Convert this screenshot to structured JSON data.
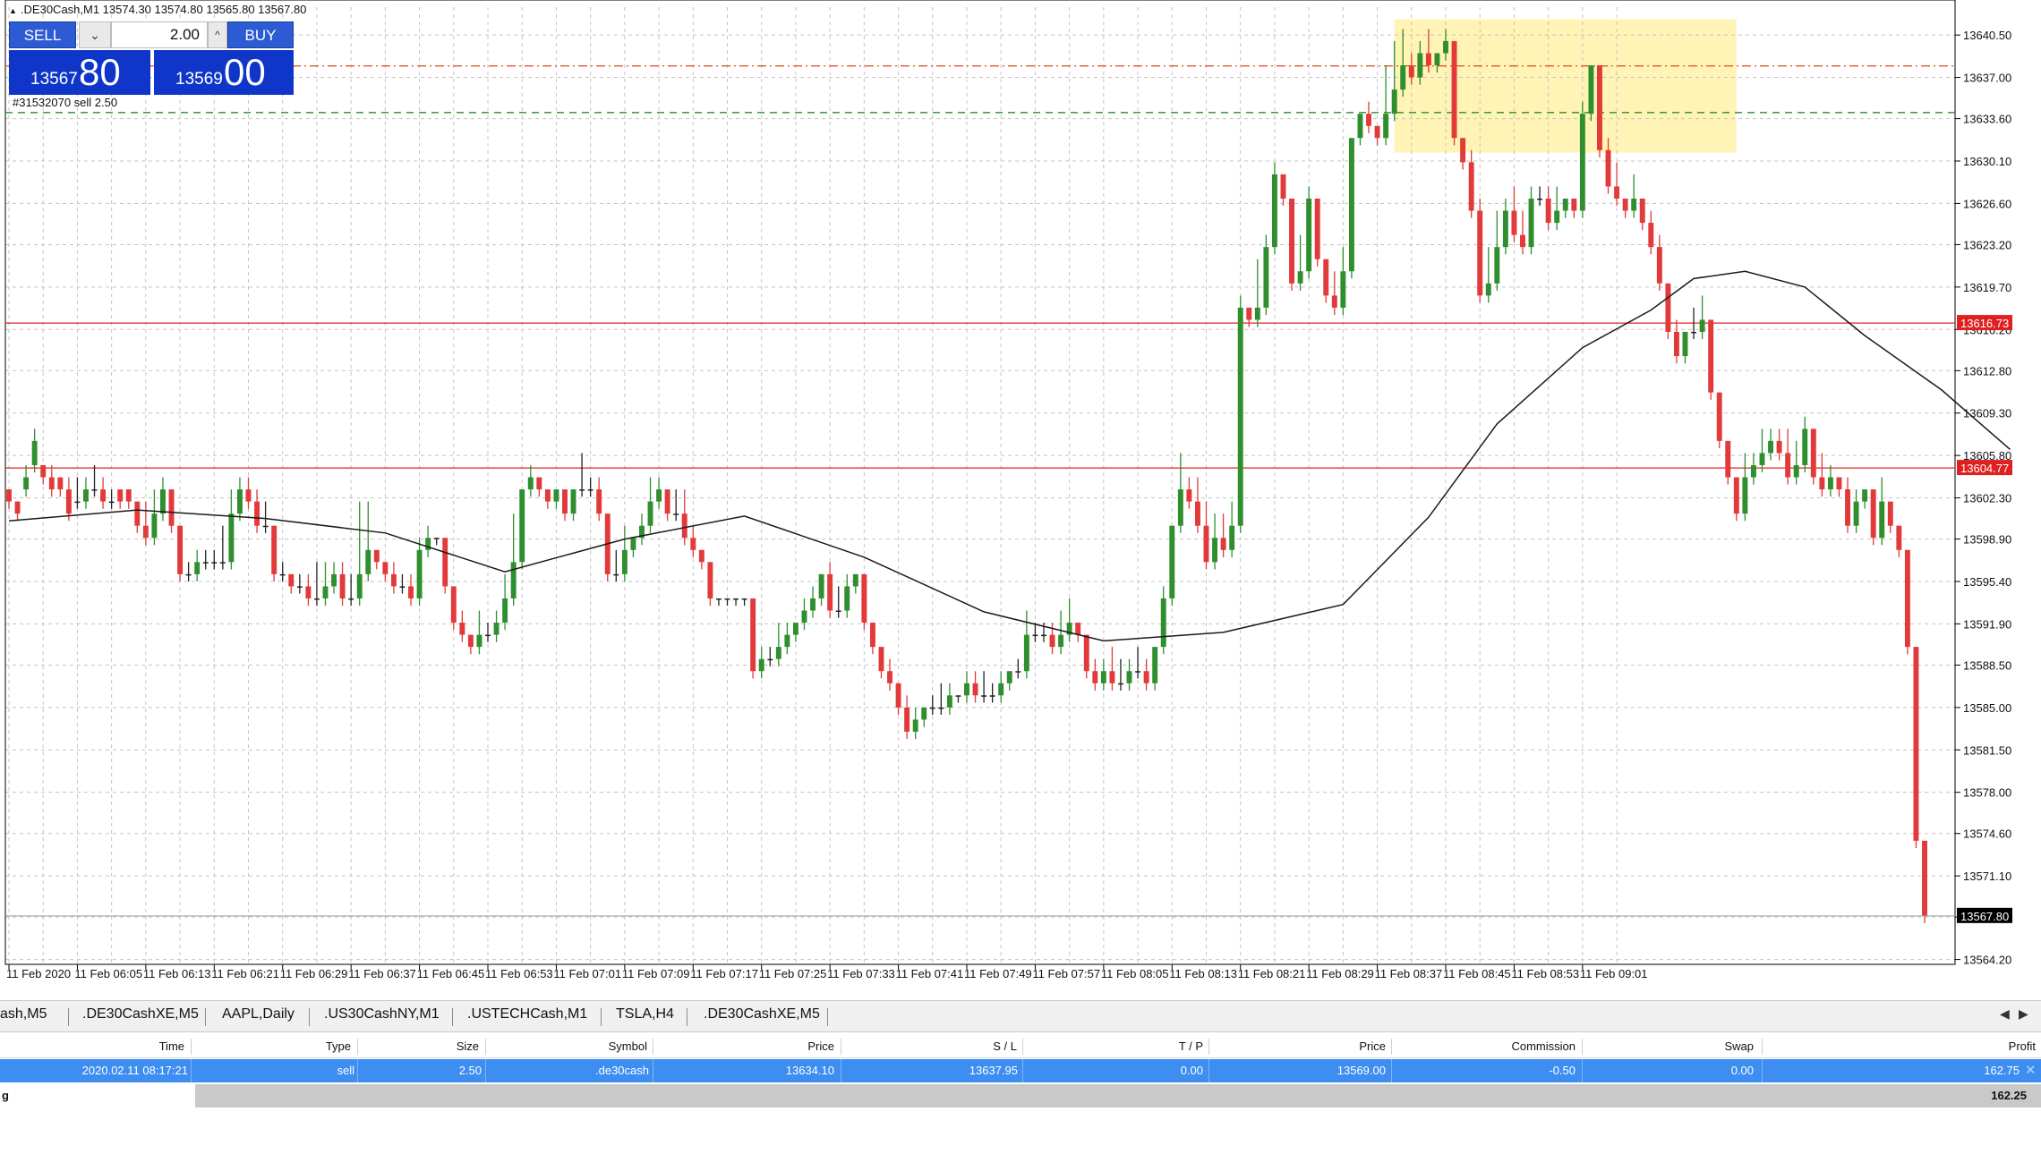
{
  "window": {
    "symbol_line": ".DE30Cash,M1  13574.30 13574.80 13565.80 13567.80"
  },
  "trade_panel": {
    "sell_label": "SELL",
    "buy_label": "BUY",
    "lot_value": "2.00",
    "sell_price_small": "13567",
    "sell_price_big": "80",
    "buy_price_small": "13569",
    "buy_price_big": "00",
    "order_label": "#31532070 sell 2.50"
  },
  "chart_data": {
    "type": "candlestick",
    "price_ticks": [
      "13640.50",
      "13637.00",
      "13633.60",
      "13630.10",
      "13626.60",
      "13623.20",
      "13619.70",
      "13616.20",
      "13612.80",
      "13609.30",
      "13605.80",
      "13602.30",
      "13598.90",
      "13595.40",
      "13591.90",
      "13588.50",
      "13585.00",
      "13581.50",
      "13578.00",
      "13574.60",
      "13571.10",
      "13567.70",
      "13564.20"
    ],
    "time_ticks": [
      "11 Feb 2020",
      "11 Feb 06:05",
      "11 Feb 06:13",
      "11 Feb 06:21",
      "11 Feb 06:29",
      "11 Feb 06:37",
      "11 Feb 06:45",
      "11 Feb 06:53",
      "11 Feb 07:01",
      "11 Feb 07:09",
      "11 Feb 07:17",
      "11 Feb 07:25",
      "11 Feb 07:33",
      "11 Feb 07:41",
      "11 Feb 07:49",
      "11 Feb 07:57",
      "11 Feb 08:05",
      "11 Feb 08:13",
      "11 Feb 08:21",
      "11 Feb 08:29",
      "11 Feb 08:37",
      "11 Feb 08:45",
      "11 Feb 08:53",
      "11 Feb 09:01"
    ],
    "y_range": [
      13563.8,
      13642.8
    ],
    "horizontal_levels": [
      {
        "price": 13616.73,
        "label": "13616.73",
        "color": "#e02020",
        "style": "solid"
      },
      {
        "price": 13604.77,
        "label": "13604.77",
        "color": "#e02020",
        "style": "solid"
      },
      {
        "price": 13637.95,
        "label": "",
        "color": "#e05a2a",
        "style": "dashdot"
      },
      {
        "price": 13634.1,
        "label": "",
        "color": "#2e8b2e",
        "style": "dashed"
      }
    ],
    "current_price_label": "13567.80",
    "highlight_zone": {
      "t_start": 162,
      "t_end": 202,
      "price_low": 13630.8,
      "price_high": 13641.8,
      "color": "#fff2a8"
    },
    "ma_points": [
      [
        0,
        13600.4
      ],
      [
        15,
        13601.3
      ],
      [
        30,
        13600.6
      ],
      [
        44,
        13599.4
      ],
      [
        58,
        13596.2
      ],
      [
        72,
        13598.9
      ],
      [
        86,
        13600.8
      ],
      [
        100,
        13597.4
      ],
      [
        114,
        13592.9
      ],
      [
        128,
        13590.5
      ],
      [
        142,
        13591.2
      ],
      [
        156,
        13593.5
      ],
      [
        166,
        13600.7
      ],
      [
        174,
        13608.4
      ],
      [
        184,
        13614.7
      ],
      [
        192,
        13617.8
      ],
      [
        197,
        13620.4
      ],
      [
        203,
        13621.0
      ],
      [
        210,
        13619.7
      ],
      [
        217,
        13615.7
      ],
      [
        226,
        13611.2
      ],
      [
        234,
        13606.3
      ]
    ],
    "candles": [
      [
        13603,
        13602,
        13600
      ],
      [
        13602,
        13601,
        13602
      ],
      [
        13603,
        13604,
        13605
      ],
      [
        13605,
        13607,
        13608
      ],
      [
        13605,
        13604,
        13605
      ],
      [
        13604,
        13603,
        13605
      ],
      [
        13604,
        13603,
        13604
      ],
      [
        13603,
        13601,
        13604
      ],
      [
        13602,
        13602,
        13604
      ],
      [
        13602,
        13603,
        13604
      ],
      [
        13603,
        13603,
        13605
      ],
      [
        13603,
        13602,
        13604
      ],
      [
        13602,
        13602,
        13603
      ],
      [
        13603,
        13602,
        13603
      ],
      [
        13603,
        13602,
        13603
      ],
      [
        13602,
        13600,
        13602
      ],
      [
        13600,
        13599,
        13602
      ],
      [
        13599,
        13601,
        13603
      ],
      [
        13601,
        13603,
        13604
      ],
      [
        13603,
        13600,
        13603
      ],
      [
        13600,
        13596,
        13600
      ],
      [
        13596,
        13596,
        13597
      ],
      [
        13596,
        13597,
        13598
      ],
      [
        13597,
        13597,
        13598
      ],
      [
        13597,
        13597,
        13598
      ],
      [
        13597,
        13597,
        13600
      ],
      [
        13597,
        13601,
        13603
      ],
      [
        13601,
        13603,
        13604
      ],
      [
        13603,
        13602,
        13604
      ],
      [
        13602,
        13600,
        13603
      ],
      [
        13600,
        13600,
        13602
      ],
      [
        13600,
        13596,
        13600
      ],
      [
        13596,
        13596,
        13597
      ],
      [
        13596,
        13595,
        13596
      ],
      [
        13595,
        13595,
        13596
      ],
      [
        13595,
        13594,
        13596
      ],
      [
        13594,
        13594,
        13597
      ],
      [
        13594,
        13595,
        13597
      ],
      [
        13595,
        13596,
        13597
      ],
      [
        13596,
        13594,
        13597
      ],
      [
        13594,
        13594,
        13596
      ],
      [
        13594,
        13596,
        13602
      ],
      [
        13596,
        13598,
        13602
      ],
      [
        13598,
        13597,
        13598
      ],
      [
        13597,
        13596,
        13597
      ],
      [
        13596,
        13595,
        13597
      ],
      [
        13595,
        13595,
        13596
      ],
      [
        13595,
        13594,
        13596
      ],
      [
        13594,
        13598,
        13599
      ],
      [
        13598,
        13599,
        13600
      ],
      [
        13599,
        13599,
        13599
      ],
      [
        13599,
        13595,
        13599
      ],
      [
        13595,
        13592,
        13595
      ],
      [
        13592,
        13591,
        13593
      ],
      [
        13591,
        13590,
        13591
      ],
      [
        13590,
        13591,
        13593
      ],
      [
        13591,
        13591,
        13592
      ],
      [
        13591,
        13592,
        13593
      ],
      [
        13592,
        13594,
        13596
      ],
      [
        13594,
        13597,
        13601
      ],
      [
        13597,
        13603,
        13603
      ],
      [
        13603,
        13604,
        13605
      ],
      [
        13604,
        13603,
        13604
      ],
      [
        13603,
        13602,
        13603
      ],
      [
        13602,
        13603,
        13603
      ],
      [
        13603,
        13601,
        13603
      ],
      [
        13601,
        13603,
        13603
      ],
      [
        13603,
        13603,
        13606
      ],
      [
        13603,
        13603,
        13604
      ],
      [
        13603,
        13601,
        13604
      ],
      [
        13601,
        13596,
        13601
      ],
      [
        13596,
        13596,
        13598
      ],
      [
        13596,
        13598,
        13600
      ],
      [
        13598,
        13599,
        13599
      ],
      [
        13599,
        13600,
        13601
      ],
      [
        13600,
        13602,
        13604
      ],
      [
        13602,
        13603,
        13604
      ],
      [
        13603,
        13601,
        13603
      ],
      [
        13601,
        13601,
        13603
      ],
      [
        13601,
        13599,
        13603
      ],
      [
        13599,
        13598,
        13600
      ],
      [
        13598,
        13597,
        13598
      ],
      [
        13597,
        13594,
        13597
      ],
      [
        13594,
        13594,
        13594
      ],
      [
        13594,
        13594,
        13594
      ],
      [
        13594,
        13594,
        13594
      ],
      [
        13594,
        13594,
        13594
      ],
      [
        13594,
        13588,
        13594
      ],
      [
        13588,
        13589,
        13590
      ],
      [
        13589,
        13589,
        13590
      ],
      [
        13589,
        13590,
        13592
      ],
      [
        13590,
        13591,
        13592
      ],
      [
        13591,
        13592,
        13592
      ],
      [
        13592,
        13593,
        13594
      ],
      [
        13593,
        13594,
        13595
      ],
      [
        13594,
        13596,
        13596
      ],
      [
        13596,
        13593,
        13597
      ],
      [
        13593,
        13593,
        13595
      ],
      [
        13593,
        13595,
        13596
      ],
      [
        13595,
        13596,
        13596
      ],
      [
        13596,
        13592,
        13596
      ],
      [
        13592,
        13590,
        13592
      ],
      [
        13590,
        13588,
        13590
      ],
      [
        13588,
        13587,
        13589
      ],
      [
        13587,
        13585,
        13587
      ],
      [
        13585,
        13583,
        13586
      ],
      [
        13583,
        13584,
        13585
      ],
      [
        13584,
        13585,
        13585
      ],
      [
        13585,
        13585,
        13586
      ],
      [
        13585,
        13585,
        13587
      ],
      [
        13585,
        13586,
        13587
      ],
      [
        13586,
        13586,
        13586
      ],
      [
        13586,
        13587,
        13588
      ],
      [
        13587,
        13586,
        13588
      ],
      [
        13586,
        13586,
        13588
      ],
      [
        13586,
        13586,
        13587
      ],
      [
        13586,
        13587,
        13588
      ],
      [
        13587,
        13588,
        13588
      ],
      [
        13588,
        13588,
        13589
      ],
      [
        13588,
        13591,
        13593
      ],
      [
        13591,
        13591,
        13592
      ],
      [
        13591,
        13591,
        13592
      ],
      [
        13591,
        13590,
        13592
      ],
      [
        13590,
        13591,
        13593
      ],
      [
        13591,
        13592,
        13594
      ],
      [
        13592,
        13591,
        13592
      ],
      [
        13591,
        13588,
        13591
      ],
      [
        13588,
        13587,
        13589
      ],
      [
        13587,
        13588,
        13589
      ],
      [
        13588,
        13587,
        13590
      ],
      [
        13587,
        13587,
        13589
      ],
      [
        13587,
        13588,
        13589
      ],
      [
        13588,
        13588,
        13590
      ],
      [
        13588,
        13587,
        13589
      ],
      [
        13587,
        13590,
        13590
      ],
      [
        13590,
        13594,
        13595
      ],
      [
        13594,
        13600,
        13600
      ],
      [
        13600,
        13603,
        13606
      ],
      [
        13603,
        13602,
        13604
      ],
      [
        13602,
        13600,
        13604
      ],
      [
        13600,
        13597,
        13602
      ],
      [
        13597,
        13599,
        13601
      ],
      [
        13599,
        13598,
        13601
      ],
      [
        13598,
        13600,
        13602
      ],
      [
        13600,
        13618,
        13619
      ],
      [
        13618,
        13617,
        13618
      ],
      [
        13617,
        13618,
        13622
      ],
      [
        13618,
        13623,
        13624
      ],
      [
        13623,
        13629,
        13630
      ],
      [
        13629,
        13627,
        13628
      ],
      [
        13627,
        13620,
        13627
      ],
      [
        13620,
        13621,
        13624
      ],
      [
        13621,
        13627,
        13628
      ],
      [
        13627,
        13622,
        13627
      ],
      [
        13622,
        13619,
        13622
      ],
      [
        13619,
        13618,
        13621
      ],
      [
        13618,
        13621,
        13623
      ],
      [
        13621,
        13632,
        13632
      ],
      [
        13632,
        13634,
        13634
      ],
      [
        13634,
        13633,
        13635
      ],
      [
        13633,
        13632,
        13633
      ],
      [
        13632,
        13634,
        13638
      ],
      [
        13634,
        13636,
        13640
      ],
      [
        13636,
        13638,
        13641
      ],
      [
        13638,
        13637,
        13639
      ],
      [
        13637,
        13639,
        13640
      ],
      [
        13639,
        13638,
        13641
      ],
      [
        13638,
        13639,
        13639
      ],
      [
        13639,
        13640,
        13641
      ],
      [
        13640,
        13632,
        13640
      ],
      [
        13632,
        13630,
        13632
      ],
      [
        13630,
        13626,
        13631
      ],
      [
        13626,
        13619,
        13627
      ],
      [
        13619,
        13620,
        13623
      ],
      [
        13620,
        13623,
        13626
      ],
      [
        13623,
        13626,
        13627
      ],
      [
        13626,
        13624,
        13628
      ],
      [
        13624,
        13623,
        13626
      ],
      [
        13623,
        13627,
        13628
      ],
      [
        13627,
        13627,
        13628
      ],
      [
        13627,
        13625,
        13628
      ],
      [
        13625,
        13626,
        13628
      ],
      [
        13626,
        13627,
        13627
      ],
      [
        13627,
        13626,
        13627
      ],
      [
        13626,
        13634,
        13635
      ],
      [
        13634,
        13638,
        13638
      ],
      [
        13638,
        13631,
        13638
      ],
      [
        13631,
        13628,
        13632
      ],
      [
        13628,
        13627,
        13630
      ],
      [
        13627,
        13626,
        13627
      ],
      [
        13626,
        13627,
        13629
      ],
      [
        13627,
        13625,
        13627
      ],
      [
        13625,
        13623,
        13626
      ],
      [
        13623,
        13620,
        13624
      ],
      [
        13620,
        13616,
        13620
      ],
      [
        13616,
        13614,
        13617
      ],
      [
        13614,
        13616,
        13616
      ],
      [
        13616,
        13616,
        13618
      ],
      [
        13616,
        13617,
        13619
      ],
      [
        13617,
        13611,
        13617
      ],
      [
        13611,
        13607,
        13611
      ],
      [
        13607,
        13604,
        13607
      ],
      [
        13604,
        13601,
        13604
      ],
      [
        13601,
        13604,
        13606
      ],
      [
        13604,
        13605,
        13606
      ],
      [
        13605,
        13606,
        13608
      ],
      [
        13606,
        13607,
        13608
      ],
      [
        13607,
        13606,
        13608
      ],
      [
        13606,
        13604,
        13608
      ],
      [
        13604,
        13605,
        13607
      ],
      [
        13605,
        13608,
        13609
      ],
      [
        13608,
        13604,
        13608
      ],
      [
        13604,
        13603,
        13606
      ],
      [
        13603,
        13604,
        13605
      ],
      [
        13604,
        13603,
        13604
      ],
      [
        13603,
        13600,
        13604
      ],
      [
        13600,
        13602,
        13603
      ],
      [
        13602,
        13603,
        13603
      ],
      [
        13603,
        13599,
        13603
      ],
      [
        13599,
        13602,
        13604
      ],
      [
        13602,
        13600,
        13602
      ],
      [
        13600,
        13598,
        13600
      ],
      [
        13598,
        13590,
        13598
      ],
      [
        13590,
        13574,
        13590
      ],
      [
        13574,
        13567.8,
        13574
      ]
    ]
  },
  "tabs": [
    "ash,M5",
    ".DE30CashXE,M5",
    "AAPL,Daily",
    ".US30CashNY,M1",
    ".USTECHCash,M1",
    "TSLA,H4",
    ".DE30CashXE,M5"
  ],
  "positions": {
    "headers": [
      "Time",
      "Type",
      "Size",
      "Symbol",
      "Price",
      "S / L",
      "T / P",
      "Price",
      "Commission",
      "Swap",
      "Profit"
    ],
    "row": [
      "2020.02.11 08:17:21",
      "sell",
      "2.50",
      ".de30cash",
      "13634.10",
      "13637.95",
      "0.00",
      "13569.00",
      "-0.50",
      "0.00",
      "162.75"
    ],
    "total_label": "g",
    "total_profit": "162.25"
  },
  "colors": {
    "bull": "#2f8f2f",
    "bear": "#e23a3a",
    "doji": "#222222",
    "grid": "#c4c4c4",
    "ma_line": "#1a1a1a",
    "selected_row": "#3d8ef0",
    "panel_blue": "#2d5bd3"
  }
}
